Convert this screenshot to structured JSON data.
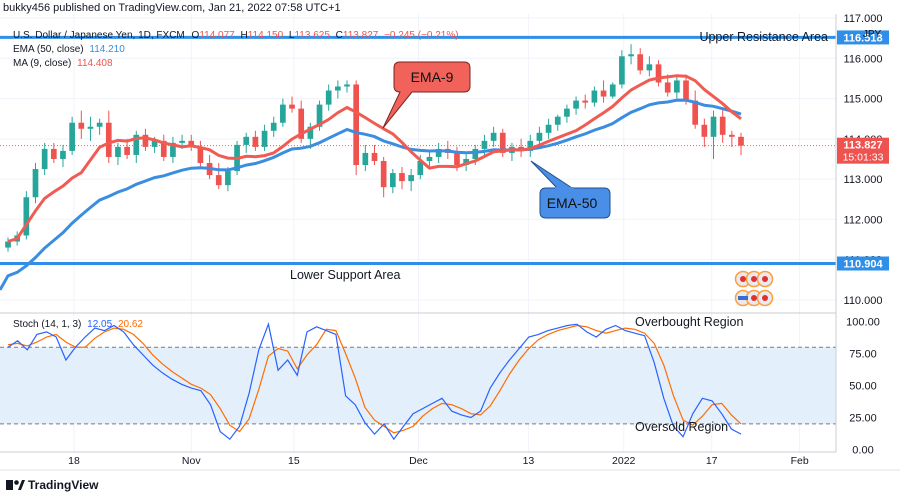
{
  "header": {
    "publisher": "bukky456 published on TradingView.com, Jan 21, 2022 07:58 UTC+1",
    "symbol": "U.S. Dollar / Japanese Yen, 1D, FXCM",
    "ohlc": {
      "o_label": "O",
      "o": "114.077",
      "h_label": "H",
      "h": "114.150",
      "l_label": "L",
      "l": "113.625",
      "c_label": "C",
      "c": "113.827",
      "change": "−0.245 (−0.21%)"
    },
    "ema_label": "EMA (50, close)",
    "ema_value": "114.210",
    "ma_label": "MA (9, close)",
    "ma_value": "114.408"
  },
  "footer": {
    "brand": "TradingView"
  },
  "chart_data": [
    {
      "type": "candlestick",
      "currency": "JPY",
      "y_ticks": [
        110.0,
        111.0,
        112.0,
        113.0,
        114.0,
        115.0,
        116.0,
        117.0
      ],
      "ylim": [
        109.7,
        117.1
      ],
      "x_ticks": [
        "18",
        "Nov",
        "15",
        "Dec",
        "13",
        "2022",
        "17",
        "Feb"
      ],
      "last_price": "113.827",
      "countdown": "15:01:33",
      "levels": [
        {
          "name": "Upper Resistance Area",
          "value": 116.518
        },
        {
          "name": "Lower Support Area",
          "value": 110.904
        }
      ],
      "callouts": [
        {
          "label": "EMA-9",
          "color": "#f05b52"
        },
        {
          "label": "EMA-50",
          "color": "#3b8de0"
        }
      ],
      "candles": [
        [
          111.3,
          111.55,
          111.2,
          111.45
        ],
        [
          111.45,
          111.7,
          111.35,
          111.6
        ],
        [
          111.6,
          112.7,
          111.5,
          112.55
        ],
        [
          112.55,
          113.4,
          112.4,
          113.25
        ],
        [
          113.25,
          113.9,
          113.1,
          113.75
        ],
        [
          113.75,
          113.9,
          113.4,
          113.5
        ],
        [
          113.5,
          113.85,
          113.3,
          113.7
        ],
        [
          113.7,
          114.55,
          113.6,
          114.4
        ],
        [
          114.4,
          114.7,
          114.0,
          114.25
        ],
        [
          114.25,
          114.55,
          113.95,
          114.3
        ],
        [
          114.3,
          114.5,
          114.1,
          114.4
        ],
        [
          114.4,
          114.7,
          113.4,
          113.55
        ],
        [
          113.55,
          113.9,
          113.35,
          113.8
        ],
        [
          113.8,
          114.0,
          113.5,
          113.6
        ],
        [
          113.6,
          114.2,
          113.4,
          114.1
        ],
        [
          114.1,
          114.25,
          113.7,
          113.8
        ],
        [
          113.8,
          114.05,
          113.65,
          113.95
        ],
        [
          113.95,
          114.1,
          113.45,
          113.55
        ],
        [
          113.55,
          114.05,
          113.4,
          113.9
        ],
        [
          113.9,
          114.1,
          113.75,
          113.95
        ],
        [
          113.95,
          114.1,
          113.7,
          113.8
        ],
        [
          113.8,
          113.95,
          113.3,
          113.4
        ],
        [
          113.4,
          113.6,
          113.0,
          113.1
        ],
        [
          113.1,
          113.4,
          112.75,
          112.85
        ],
        [
          112.85,
          113.3,
          112.7,
          113.2
        ],
        [
          113.2,
          113.95,
          113.1,
          113.85
        ],
        [
          113.85,
          114.15,
          113.65,
          114.05
        ],
        [
          114.05,
          114.2,
          113.7,
          113.8
        ],
        [
          113.8,
          114.35,
          113.7,
          114.2
        ],
        [
          114.2,
          114.55,
          114.05,
          114.4
        ],
        [
          114.4,
          115.0,
          114.3,
          114.85
        ],
        [
          114.85,
          115.05,
          114.65,
          114.75
        ],
        [
          114.75,
          114.95,
          113.9,
          114.0
        ],
        [
          114.0,
          114.4,
          113.75,
          114.3
        ],
        [
          114.3,
          114.95,
          114.2,
          114.85
        ],
        [
          114.85,
          115.35,
          114.7,
          115.2
        ],
        [
          115.2,
          115.45,
          115.0,
          115.3
        ],
        [
          115.3,
          115.45,
          115.15,
          115.35
        ],
        [
          115.35,
          115.45,
          113.1,
          113.35
        ],
        [
          113.35,
          113.85,
          113.2,
          113.65
        ],
        [
          113.65,
          113.85,
          113.35,
          113.45
        ],
        [
          113.45,
          113.55,
          112.55,
          112.8
        ],
        [
          112.8,
          113.25,
          112.65,
          113.15
        ],
        [
          113.15,
          113.3,
          112.75,
          112.95
        ],
        [
          112.95,
          113.25,
          112.7,
          113.1
        ],
        [
          113.1,
          113.6,
          113.0,
          113.45
        ],
        [
          113.45,
          113.7,
          113.3,
          113.55
        ],
        [
          113.55,
          113.9,
          113.4,
          113.75
        ],
        [
          113.75,
          113.95,
          113.5,
          113.65
        ],
        [
          113.65,
          113.8,
          113.2,
          113.35
        ],
        [
          113.35,
          113.65,
          113.2,
          113.5
        ],
        [
          113.5,
          113.85,
          113.35,
          113.75
        ],
        [
          113.75,
          114.1,
          113.6,
          113.95
        ],
        [
          113.95,
          114.3,
          113.8,
          114.15
        ],
        [
          114.15,
          114.25,
          113.55,
          113.65
        ],
        [
          113.65,
          113.9,
          113.45,
          113.8
        ],
        [
          113.8,
          114.0,
          113.55,
          113.7
        ],
        [
          113.7,
          114.1,
          113.55,
          113.95
        ],
        [
          113.95,
          114.3,
          113.75,
          114.15
        ],
        [
          114.15,
          114.5,
          114.0,
          114.35
        ],
        [
          114.35,
          114.6,
          114.2,
          114.55
        ],
        [
          114.55,
          114.85,
          114.4,
          114.75
        ],
        [
          114.75,
          115.05,
          114.6,
          114.95
        ],
        [
          114.95,
          115.1,
          114.75,
          114.9
        ],
        [
          114.9,
          115.3,
          114.8,
          115.2
        ],
        [
          115.2,
          115.45,
          114.9,
          115.05
        ],
        [
          115.05,
          115.4,
          115.0,
          115.35
        ],
        [
          115.35,
          116.2,
          115.25,
          116.05
        ],
        [
          116.05,
          116.35,
          115.85,
          116.1
        ],
        [
          116.1,
          116.25,
          115.6,
          115.7
        ],
        [
          115.7,
          116.05,
          115.55,
          115.85
        ],
        [
          115.85,
          115.95,
          115.3,
          115.4
        ],
        [
          115.4,
          115.6,
          115.05,
          115.15
        ],
        [
          115.15,
          115.55,
          115.0,
          115.45
        ],
        [
          115.45,
          115.6,
          114.85,
          114.95
        ],
        [
          114.95,
          115.2,
          114.25,
          114.35
        ],
        [
          114.35,
          114.5,
          113.8,
          114.05
        ],
        [
          114.05,
          114.7,
          113.5,
          114.55
        ],
        [
          114.55,
          114.75,
          113.9,
          114.1
        ],
        [
          114.1,
          114.2,
          113.8,
          114.05
        ],
        [
          114.05,
          114.15,
          113.6,
          113.83
        ]
      ]
    },
    {
      "type": "line",
      "title": "Stoch (14, 1, 3)",
      "k_value": "12.05",
      "d_value": "20.62",
      "ylim": [
        -2,
        106
      ],
      "y_ticks": [
        "100.00",
        "75.00",
        "50.00",
        "25.00",
        "0.00"
      ],
      "band": [
        20,
        80
      ],
      "region_labels": [
        "Overbought Region",
        "Oversold Region"
      ],
      "series": [
        {
          "name": "%K",
          "color": "#2962ff",
          "values": [
            80,
            85,
            78,
            90,
            92,
            88,
            70,
            80,
            88,
            95,
            93,
            97,
            92,
            82,
            74,
            66,
            60,
            55,
            51,
            48,
            46,
            35,
            14,
            8,
            18,
            44,
            78,
            98,
            62,
            70,
            58,
            92,
            96,
            93,
            90,
            42,
            35,
            21,
            12,
            20,
            8,
            18,
            28,
            32,
            36,
            40,
            30,
            27,
            25,
            30,
            48,
            60,
            70,
            79,
            88,
            90,
            93,
            95,
            97,
            98,
            92,
            88,
            94,
            97,
            93,
            91,
            89,
            68,
            40,
            18,
            10,
            28,
            40,
            38,
            28,
            16,
            12
          ]
        },
        {
          "name": "%D",
          "color": "#ff6d00",
          "values": [
            82,
            83,
            81,
            84,
            88,
            90,
            84,
            80,
            80,
            87,
            92,
            95,
            94,
            90,
            83,
            74,
            67,
            61,
            56,
            51,
            48,
            43,
            32,
            19,
            14,
            24,
            47,
            73,
            79,
            77,
            63,
            74,
            82,
            94,
            93,
            75,
            56,
            33,
            23,
            18,
            13,
            15,
            18,
            26,
            32,
            36,
            35,
            32,
            28,
            27,
            34,
            46,
            59,
            70,
            79,
            86,
            90,
            93,
            95,
            97,
            96,
            93,
            91,
            93,
            95,
            94,
            91,
            83,
            66,
            42,
            23,
            19,
            26,
            35,
            36,
            27,
            20
          ]
        }
      ]
    }
  ]
}
